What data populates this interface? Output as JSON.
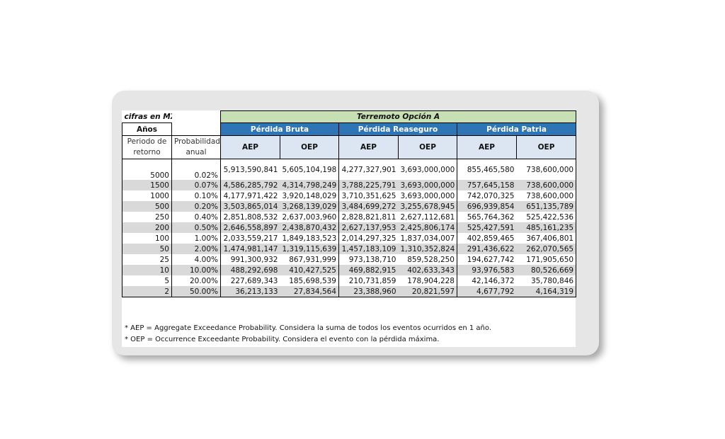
{
  "table": {
    "currency_note": "cifras en MXN",
    "scenario": "Terremoto Opción A",
    "years_label": "Años",
    "col_period": "Periodo de retorno",
    "col_prob": "Probabilidad anual",
    "groups": [
      "Pérdida Bruta",
      "Pérdida Reaseguro",
      "Pérdida Patria"
    ],
    "metrics": [
      "AEP",
      "OEP",
      "AEP",
      "OEP",
      "AEP",
      "OEP"
    ],
    "rows": [
      [
        "5000",
        "0.02%",
        "5,913,590,841",
        "5,605,104,198",
        "4,277,327,901",
        "3,693,000,000",
        "855,465,580",
        "738,600,000"
      ],
      [
        "1500",
        "0.07%",
        "4,586,285,792",
        "4,314,798,249",
        "3,788,225,791",
        "3,693,000,000",
        "757,645,158",
        "738,600,000"
      ],
      [
        "1000",
        "0.10%",
        "4,177,971,422",
        "3,920,148,029",
        "3,710,351,625",
        "3,693,000,000",
        "742,070,325",
        "738,600,000"
      ],
      [
        "500",
        "0.20%",
        "3,503,865,014",
        "3,268,139,029",
        "3,484,699,272",
        "3,255,678,945",
        "696,939,854",
        "651,135,789"
      ],
      [
        "250",
        "0.40%",
        "2,851,808,532",
        "2,637,003,960",
        "2,828,821,811",
        "2,627,112,681",
        "565,764,362",
        "525,422,536"
      ],
      [
        "200",
        "0.50%",
        "2,646,558,897",
        "2,438,870,432",
        "2,627,137,953",
        "2,425,806,174",
        "525,427,591",
        "485,161,235"
      ],
      [
        "100",
        "1.00%",
        "2,033,559,217",
        "1,849,183,523",
        "2,014,297,325",
        "1,837,034,007",
        "402,859,465",
        "367,406,801"
      ],
      [
        "50",
        "2.00%",
        "1,474,981,147",
        "1,319,115,639",
        "1,457,183,109",
        "1,310,352,824",
        "291,436,622",
        "262,070,565"
      ],
      [
        "25",
        "4.00%",
        "991,300,932",
        "867,931,999",
        "973,138,710",
        "859,528,250",
        "194,627,742",
        "171,905,650"
      ],
      [
        "10",
        "10.00%",
        "488,292,698",
        "410,427,525",
        "469,882,915",
        "402,633,343",
        "93,976,583",
        "80,526,669"
      ],
      [
        "5",
        "20.00%",
        "227,689,343",
        "185,698,539",
        "210,731,859",
        "178,904,228",
        "42,146,372",
        "35,780,846"
      ],
      [
        "2",
        "50.00%",
        "36,213,133",
        "27,834,564",
        "23,388,960",
        "20,821,597",
        "4,677,792",
        "4,164,319"
      ]
    ]
  },
  "notes": [
    "* AEP = Aggregate Exceedance Probability. Considera la suma de todos los eventos ocurridos en 1 año.",
    "* OEP = Occurrence Exceedante Probability. Considera el evento con la pérdida máxima."
  ],
  "colors": {
    "header_green": "#c6e0b4",
    "header_blue": "#2e75b6",
    "subheader": "#dce6f2",
    "row_shade": "#d9d9d9"
  }
}
